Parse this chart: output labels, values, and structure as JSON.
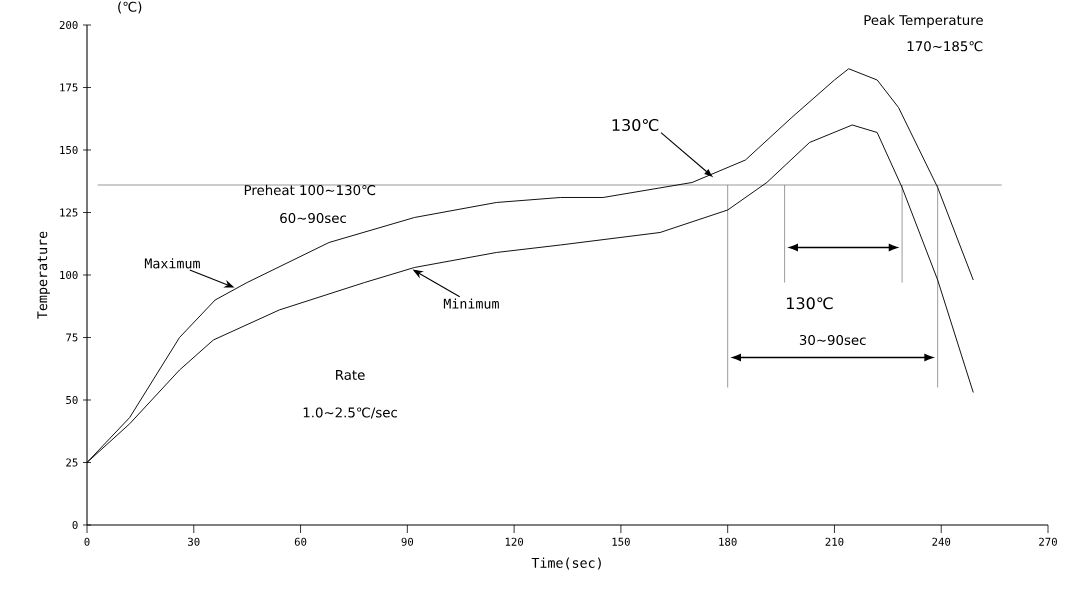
{
  "chart_data": {
    "type": "line",
    "xlabel": "Time(sec)",
    "ylabel": "Temperature",
    "xlim": [
      0,
      270
    ],
    "ylim": [
      0,
      200
    ],
    "xticks": [
      0,
      30,
      60,
      90,
      120,
      150,
      180,
      210,
      240,
      270
    ],
    "yticks": [
      0,
      25,
      50,
      75,
      100,
      125,
      150,
      175,
      200
    ],
    "grid": false,
    "marker": "none",
    "line_style": "solid",
    "series": [
      {
        "name": "Maximum",
        "color": "#000000",
        "x": [
          0,
          12,
          26,
          36,
          45,
          68,
          92,
          115,
          133,
          145,
          170,
          185,
          198,
          210,
          214,
          222,
          228,
          239,
          249
        ],
        "values": [
          25,
          43,
          75,
          90,
          97,
          113,
          123,
          129,
          131,
          131,
          137,
          146,
          163,
          178,
          182.5,
          178,
          167,
          135,
          98
        ]
      },
      {
        "name": "Minimum",
        "color": "#000000",
        "x": [
          0,
          12,
          26,
          35.5,
          54,
          78,
          92,
          115,
          133,
          161,
          180,
          191,
          203,
          215,
          222,
          229,
          239,
          249
        ],
        "values": [
          25,
          40.5,
          62,
          74,
          86,
          97,
          103,
          109,
          112,
          117,
          126,
          137,
          153,
          160,
          157,
          135,
          98,
          53
        ]
      }
    ],
    "ref_lines": [
      {
        "axis": "y",
        "value": 136,
        "color": "#808080"
      },
      {
        "axis": "x",
        "value": 180,
        "color": "#808080"
      },
      {
        "axis": "x",
        "value": 196,
        "color": "#808080"
      },
      {
        "axis": "x",
        "value": 229,
        "color": "#808080"
      },
      {
        "axis": "x",
        "value": 239,
        "color": "#808080"
      }
    ],
    "annotations": [
      "(℃)",
      {
        "text": "130℃",
        "x": 176,
        "y": 139
      },
      "Preheat 100∼130℃",
      "60∼90sec",
      "Rate",
      "1.0∼2.5℃/sec",
      "Peak Temperature",
      "170∼185℃",
      "130℃",
      "30∼90sec"
    ]
  }
}
